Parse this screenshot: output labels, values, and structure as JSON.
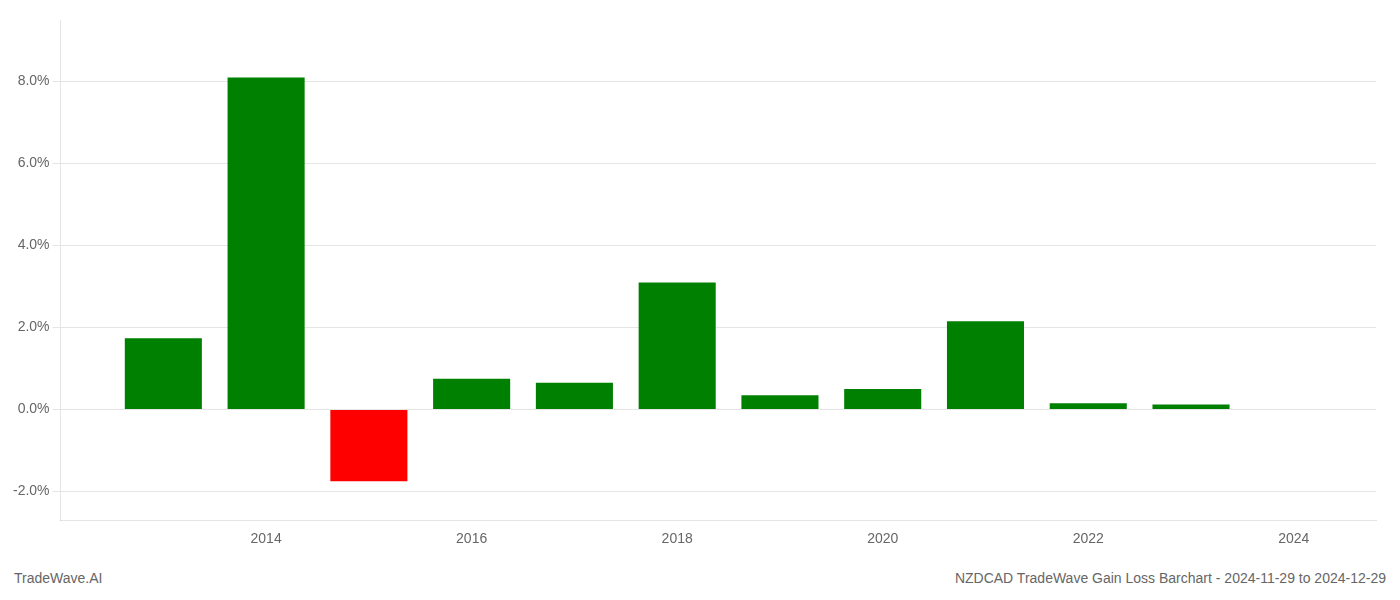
{
  "chart_data": {
    "type": "bar",
    "x": [
      2013,
      2014,
      2015,
      2016,
      2017,
      2018,
      2019,
      2020,
      2021,
      2022,
      2023
    ],
    "values": [
      0.0174,
      0.081,
      -0.0175,
      0.0075,
      0.0065,
      0.031,
      0.0035,
      0.005,
      0.0215,
      0.0015,
      0.0012
    ],
    "colors": [
      "#008000",
      "#008000",
      "#ff0000",
      "#008000",
      "#008000",
      "#008000",
      "#008000",
      "#008000",
      "#008000",
      "#008000",
      "#008000"
    ],
    "xlim": [
      2012.0,
      2024.8
    ],
    "xticks": [
      2014,
      2016,
      2018,
      2020,
      2022,
      2024
    ],
    "ylim": [
      -0.027,
      0.095
    ],
    "yticks": [
      {
        "value": -0.02,
        "label": "-2.0%"
      },
      {
        "value": 0.0,
        "label": "0.0%"
      },
      {
        "value": 0.02,
        "label": "2.0%"
      },
      {
        "value": 0.04,
        "label": "4.0%"
      },
      {
        "value": 0.06,
        "label": "6.0%"
      },
      {
        "value": 0.08,
        "label": "8.0%"
      }
    ],
    "grid": true,
    "annotations": [
      "TradeWave.AI",
      "NZDCAD TradeWave Gain Loss Barchart - 2024-11-29 to 2024-12-29"
    ]
  }
}
